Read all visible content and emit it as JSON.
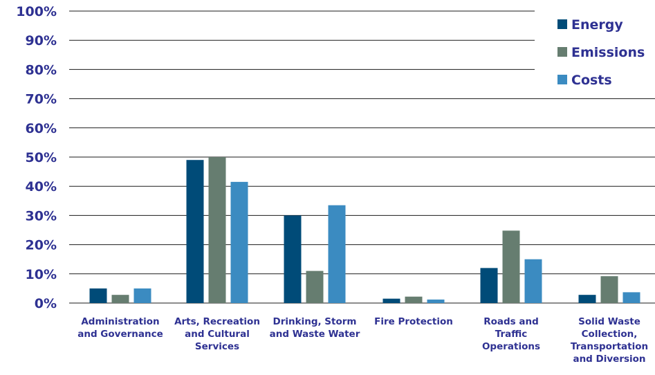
{
  "chart_data": {
    "type": "bar",
    "title": "",
    "xlabel": "",
    "ylabel": "",
    "ylim": [
      0,
      100
    ],
    "yticks": [
      {
        "value": 0,
        "label": "0%"
      },
      {
        "value": 10,
        "label": "10%"
      },
      {
        "value": 20,
        "label": "20%"
      },
      {
        "value": 30,
        "label": "30%"
      },
      {
        "value": 40,
        "label": "40%"
      },
      {
        "value": 50,
        "label": "50%"
      },
      {
        "value": 60,
        "label": "60%"
      },
      {
        "value": 70,
        "label": "70%"
      },
      {
        "value": 80,
        "label": "80%"
      },
      {
        "value": 90,
        "label": "90%"
      },
      {
        "value": 100,
        "label": "100%"
      }
    ],
    "grid": true,
    "legend_position": "top-right",
    "categories": [
      [
        "Administration",
        "and Governance"
      ],
      [
        "Arts, Recreation",
        "and Cultural",
        "Services"
      ],
      [
        "Drinking, Storm",
        "and Waste Water"
      ],
      [
        "Fire Protection"
      ],
      [
        "Roads and",
        "Traffic",
        "Operations"
      ],
      [
        "Solid Waste",
        "Collection,",
        "Transportation",
        "and Diversion"
      ]
    ],
    "series": [
      {
        "name": "Energy",
        "color": "#004b78",
        "values": [
          5,
          49,
          30,
          1.5,
          12,
          2.8
        ]
      },
      {
        "name": "Emissions",
        "color": "#667d70",
        "values": [
          2.8,
          50,
          11,
          2.2,
          24.8,
          9.2
        ]
      },
      {
        "name": "Costs",
        "color": "#3b8bc1",
        "values": [
          5,
          41.5,
          33.5,
          1.2,
          15,
          3.7
        ]
      }
    ]
  }
}
